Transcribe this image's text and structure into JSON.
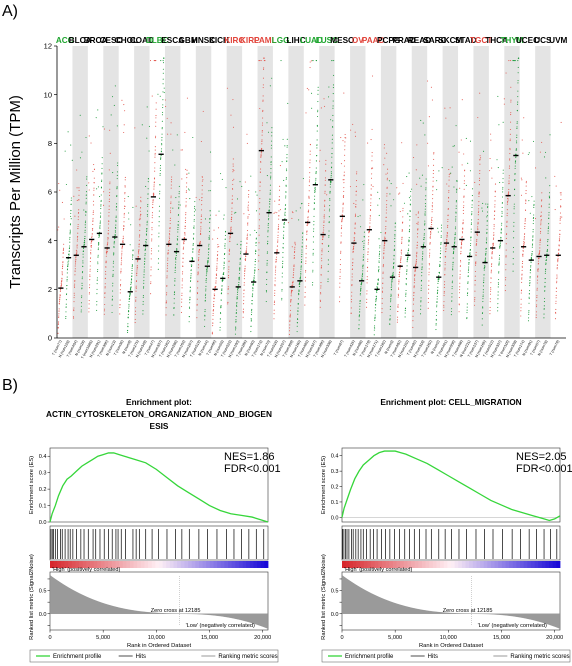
{
  "panel_a": {
    "label": "A)"
  },
  "panel_b": {
    "label": "B)"
  },
  "chart_data": [
    {
      "type": "scatter",
      "ylabel": "Transcripts Per Million (TPM)",
      "ylim": [
        0,
        12
      ],
      "yticks": [
        0,
        2,
        4,
        6,
        8,
        10,
        12
      ],
      "grid": false,
      "cancer_types": [
        {
          "name": "ACC",
          "color": "green",
          "groups": [
            {
              "label": "T (num77)",
              "median": 2.05,
              "color": "red"
            },
            {
              "label": "N (num128)",
              "median": 3.3,
              "color": "green"
            }
          ]
        },
        {
          "name": "BLCA",
          "color": "black",
          "groups": [
            {
              "label": "T (num404)",
              "median": 3.4,
              "color": "red"
            },
            {
              "label": "N (num28)",
              "median": 3.75,
              "color": "green"
            }
          ]
        },
        {
          "name": "BRCA",
          "color": "black",
          "groups": [
            {
              "label": "T (num1085)",
              "median": 4.05,
              "color": "red"
            },
            {
              "label": "N (num291)",
              "median": 4.3,
              "color": "green"
            }
          ]
        },
        {
          "name": "CESC",
          "color": "black",
          "groups": [
            {
              "label": "T (num306)",
              "median": 3.7,
              "color": "red"
            },
            {
              "label": "N (num13)",
              "median": 4.15,
              "color": "green"
            }
          ]
        },
        {
          "name": "CHOL",
          "color": "black",
          "groups": [
            {
              "label": "T (num36)",
              "median": 3.85,
              "color": "red"
            },
            {
              "label": "N (num9)",
              "median": 1.9,
              "color": "green"
            }
          ]
        },
        {
          "name": "COAD",
          "color": "black",
          "groups": [
            {
              "label": "T (num275)",
              "median": 3.25,
              "color": "red"
            },
            {
              "label": "N (num349)",
              "median": 3.8,
              "color": "green"
            }
          ]
        },
        {
          "name": "DLBC",
          "color": "green",
          "groups": [
            {
              "label": "T (num47)",
              "median": 5.8,
              "color": "red"
            },
            {
              "label": "N (num337)",
              "median": 7.55,
              "color": "green"
            }
          ]
        },
        {
          "name": "ESCA",
          "color": "black",
          "groups": [
            {
              "label": "T (num182)",
              "median": 3.85,
              "color": "red"
            },
            {
              "label": "N (num286)",
              "median": 3.55,
              "color": "green"
            }
          ]
        },
        {
          "name": "GBM",
          "color": "black",
          "groups": [
            {
              "label": "T (num163)",
              "median": 4.05,
              "color": "red"
            },
            {
              "label": "N (num207)",
              "median": 3.15,
              "color": "green"
            }
          ]
        },
        {
          "name": "HNSC",
          "color": "black",
          "groups": [
            {
              "label": "T (num519)",
              "median": 3.8,
              "color": "red"
            },
            {
              "label": "N (num44)",
              "median": 2.95,
              "color": "green"
            }
          ]
        },
        {
          "name": "KICH",
          "color": "black",
          "groups": [
            {
              "label": "T (num66)",
              "median": 2.0,
              "color": "red"
            },
            {
              "label": "N (num53)",
              "median": 2.45,
              "color": "green"
            }
          ]
        },
        {
          "name": "KIRC",
          "color": "red",
          "groups": [
            {
              "label": "T (num523)",
              "median": 4.3,
              "color": "red"
            },
            {
              "label": "N (num100)",
              "median": 2.1,
              "color": "green"
            }
          ]
        },
        {
          "name": "KIRP",
          "color": "red",
          "groups": [
            {
              "label": "T (num286)",
              "median": 3.45,
              "color": "red"
            },
            {
              "label": "N (num60)",
              "median": 2.3,
              "color": "green"
            }
          ]
        },
        {
          "name": "LAML",
          "color": "red",
          "groups": [
            {
              "label": "T (num173)",
              "median": 7.7,
              "color": "red"
            },
            {
              "label": "N (num70)",
              "median": 5.15,
              "color": "green"
            }
          ]
        },
        {
          "name": "LGG",
          "color": "green",
          "groups": [
            {
              "label": "T (num518)",
              "median": 3.5,
              "color": "red"
            },
            {
              "label": "N (num207)",
              "median": 4.85,
              "color": "green"
            }
          ]
        },
        {
          "name": "LIHC",
          "color": "black",
          "groups": [
            {
              "label": "T (num369)",
              "median": 2.1,
              "color": "red"
            },
            {
              "label": "N (num160)",
              "median": 2.35,
              "color": "green"
            }
          ]
        },
        {
          "name": "LUAD",
          "color": "green",
          "groups": [
            {
              "label": "T (num483)",
              "median": 4.75,
              "color": "red"
            },
            {
              "label": "N (num347)",
              "median": 6.3,
              "color": "green"
            }
          ]
        },
        {
          "name": "LUSC",
          "color": "green",
          "groups": [
            {
              "label": "T (num486)",
              "median": 4.25,
              "color": "red"
            },
            {
              "label": "N (num338)",
              "median": 6.5,
              "color": "green"
            }
          ]
        },
        {
          "name": "MESO",
          "color": "black",
          "groups": [
            {
              "label": "T (num87)",
              "median": 5.0,
              "color": "red"
            }
          ]
        },
        {
          "name": "OV",
          "color": "red",
          "groups": [
            {
              "label": "T (num426)",
              "median": 3.9,
              "color": "red"
            },
            {
              "label": "N (num88)",
              "median": 2.35,
              "color": "green"
            }
          ]
        },
        {
          "name": "PAAD",
          "color": "red",
          "groups": [
            {
              "label": "T (num179)",
              "median": 4.45,
              "color": "red"
            },
            {
              "label": "N (num171)",
              "median": 2.0,
              "color": "green"
            }
          ]
        },
        {
          "name": "PCPG",
          "color": "black",
          "groups": [
            {
              "label": "T (num182)",
              "median": 4.0,
              "color": "red"
            },
            {
              "label": "N (num3)",
              "median": 2.5,
              "color": "green"
            }
          ]
        },
        {
          "name": "PRAD",
          "color": "black",
          "groups": [
            {
              "label": "T (num492)",
              "median": 2.95,
              "color": "red"
            },
            {
              "label": "N (num152)",
              "median": 3.4,
              "color": "green"
            }
          ]
        },
        {
          "name": "READ",
          "color": "black",
          "groups": [
            {
              "label": "T (num92)",
              "median": 2.9,
              "color": "red"
            },
            {
              "label": "N (num318)",
              "median": 3.75,
              "color": "green"
            }
          ]
        },
        {
          "name": "SARC",
          "color": "black",
          "groups": [
            {
              "label": "T (num262)",
              "median": 4.5,
              "color": "red"
            },
            {
              "label": "N (num2)",
              "median": 2.5,
              "color": "green"
            }
          ]
        },
        {
          "name": "SKCM",
          "color": "black",
          "groups": [
            {
              "label": "T (num461)",
              "median": 3.9,
              "color": "red"
            },
            {
              "label": "N (num558)",
              "median": 3.75,
              "color": "green"
            }
          ]
        },
        {
          "name": "STAD",
          "color": "black",
          "groups": [
            {
              "label": "T (num408)",
              "median": 4.05,
              "color": "red"
            },
            {
              "label": "N (num211)",
              "median": 3.35,
              "color": "green"
            }
          ]
        },
        {
          "name": "TGCT",
          "color": "red",
          "groups": [
            {
              "label": "T (num137)",
              "median": 4.35,
              "color": "red"
            },
            {
              "label": "N (num165)",
              "median": 3.1,
              "color": "green"
            }
          ]
        },
        {
          "name": "THCA",
          "color": "black",
          "groups": [
            {
              "label": "T (num512)",
              "median": 3.7,
              "color": "red"
            },
            {
              "label": "N (num337)",
              "median": 4.0,
              "color": "green"
            }
          ]
        },
        {
          "name": "THYM",
          "color": "green",
          "groups": [
            {
              "label": "T (num118)",
              "median": 5.85,
              "color": "red"
            },
            {
              "label": "N (num339)",
              "median": 7.5,
              "color": "green"
            }
          ]
        },
        {
          "name": "UCEC",
          "color": "black",
          "groups": [
            {
              "label": "T (num174)",
              "median": 3.75,
              "color": "red"
            },
            {
              "label": "N (num91)",
              "median": 3.2,
              "color": "green"
            }
          ]
        },
        {
          "name": "UCS",
          "color": "black",
          "groups": [
            {
              "label": "T (num57)",
              "median": 3.35,
              "color": "red"
            },
            {
              "label": "N (num78)",
              "median": 3.4,
              "color": "green"
            }
          ]
        },
        {
          "name": "UVM",
          "color": "black",
          "groups": [
            {
              "label": "T (num79)",
              "median": 3.4,
              "color": "red"
            }
          ]
        }
      ]
    },
    {
      "type": "line",
      "title": "Enrichment plot:\nACTIN_CYTOSKELETON_ORGANIZATION_AND_BIOGEN\nESIS",
      "nes": "NES=1.86",
      "fdr": "FDR<0.001",
      "ylabel": "Enrichment score (ES)",
      "ylim": [
        0,
        0.45
      ],
      "yticks": [
        0.0,
        0.1,
        0.2,
        0.3,
        0.4
      ],
      "es_x": [
        0,
        200,
        500,
        800,
        1200,
        1600,
        2000,
        2500,
        3000,
        3500,
        4000,
        4500,
        5000,
        5500,
        6000,
        6500,
        7000,
        8000,
        9000,
        10000,
        11000,
        12000,
        13000,
        14000,
        15000,
        16000,
        17000,
        18000,
        19000,
        19500,
        20000,
        20500
      ],
      "es_y": [
        0.0,
        0.05,
        0.1,
        0.16,
        0.22,
        0.26,
        0.28,
        0.31,
        0.34,
        0.36,
        0.38,
        0.4,
        0.41,
        0.42,
        0.42,
        0.41,
        0.4,
        0.38,
        0.36,
        0.32,
        0.27,
        0.22,
        0.18,
        0.14,
        0.1,
        0.07,
        0.05,
        0.04,
        0.03,
        0.02,
        0.01,
        0.0
      ],
      "hits": [
        90,
        210,
        340,
        500,
        720,
        980,
        1150,
        1420,
        1700,
        1900,
        2150,
        2500,
        2900,
        3200,
        3600,
        4050,
        4300,
        4700,
        5100,
        5500,
        5850,
        6200,
        6400,
        6700,
        7100,
        7800,
        8100,
        8400,
        9000,
        9600,
        10200,
        11000,
        11800,
        12400,
        13100,
        14000,
        14800,
        15700,
        16600,
        17300,
        18000,
        18700,
        19400,
        20100
      ],
      "metric_ylabel": "Ranked list metric (Signal2Noise)",
      "metric_ylim": [
        -0.35,
        0.9
      ],
      "metric_yticks": [
        -0.25,
        0.0,
        0.25,
        0.5,
        0.75
      ],
      "metric_ytick_labels": [
        "",
        "0.0",
        "",
        "0.5",
        ""
      ],
      "high_label": "'High' (positively correlated)",
      "low_label": "'Low' (negatively correlated)",
      "zero_cross": "Zero cross at 12185",
      "zero_cross_x": 12185,
      "xlabel": "Rank in Ordered Dataset",
      "xlim": [
        0,
        20500
      ],
      "xticks": [
        0,
        5000,
        10000,
        15000,
        20000
      ],
      "xtick_labels": [
        "0",
        "5,000",
        "10,000",
        "15,000",
        "20,000"
      ],
      "legend": [
        "Enrichment profile",
        "Hits",
        "Ranking metric scores"
      ]
    },
    {
      "type": "line",
      "title": "Enrichment plot: CELL_MIGRATION",
      "nes": "NES=2.05",
      "fdr": "FDR<0.001",
      "ylabel": "Enrichment score (ES)",
      "ylim": [
        -0.03,
        0.45
      ],
      "yticks": [
        0.0,
        0.1,
        0.2,
        0.3,
        0.4
      ],
      "es_x": [
        0,
        200,
        500,
        800,
        1200,
        1600,
        2000,
        2500,
        3000,
        3500,
        4000,
        4500,
        5000,
        5500,
        6000,
        7000,
        8000,
        9000,
        10000,
        11000,
        12000,
        13000,
        14000,
        15000,
        16000,
        17000,
        18000,
        19000,
        19500,
        20000,
        20500
      ],
      "es_y": [
        0.0,
        0.06,
        0.12,
        0.18,
        0.25,
        0.3,
        0.34,
        0.37,
        0.4,
        0.42,
        0.43,
        0.43,
        0.43,
        0.42,
        0.41,
        0.38,
        0.35,
        0.31,
        0.27,
        0.23,
        0.19,
        0.15,
        0.11,
        0.08,
        0.05,
        0.03,
        0.01,
        -0.01,
        -0.02,
        -0.01,
        0.01
      ],
      "hits": [
        60,
        180,
        320,
        470,
        650,
        880,
        1050,
        1300,
        1520,
        1780,
        2000,
        2300,
        2650,
        2950,
        3300,
        3700,
        4100,
        4500,
        4950,
        5400,
        5900,
        6350,
        6800,
        7300,
        7900,
        8400,
        9100,
        9700,
        10300,
        11000,
        11700,
        12600,
        13400,
        14200,
        15100,
        16000,
        16800,
        17600,
        18300,
        19000,
        19600,
        20200
      ],
      "metric_ylabel": "Ranked list metric (Signal2Noise)",
      "metric_ylim": [
        -0.35,
        0.9
      ],
      "metric_yticks": [
        -0.25,
        0.0,
        0.25,
        0.5,
        0.75
      ],
      "metric_ytick_labels": [
        "",
        "0.0",
        "",
        "0.5",
        ""
      ],
      "high_label": "'High' (positively correlated)",
      "low_label": "'Low' (negatively correlated)",
      "zero_cross": "Zero cross at 12185",
      "zero_cross_x": 12185,
      "xlabel": "Rank in Ordered Dataset",
      "xlim": [
        0,
        20500
      ],
      "xticks": [
        0,
        5000,
        10000,
        15000,
        20000
      ],
      "xtick_labels": [
        "0",
        "5,000",
        "10,000",
        "15,000",
        "20,000"
      ],
      "legend": [
        "Enrichment profile",
        "Hits",
        "Ranking metric scores"
      ]
    }
  ]
}
